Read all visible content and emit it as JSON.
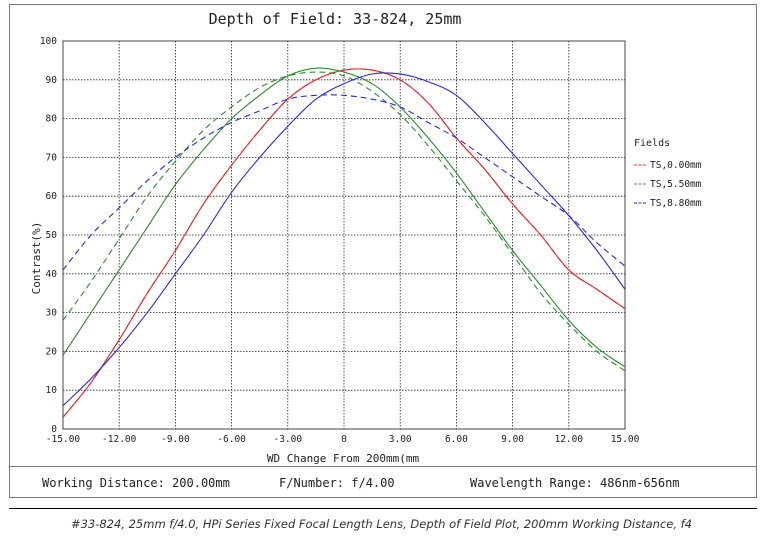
{
  "chart_data": {
    "type": "line",
    "title": "Depth of Field: 33-824, 25mm",
    "xlabel": "WD Change From 200mm(mm",
    "ylabel": "Contrast(%)",
    "xlim": [
      -15,
      15
    ],
    "ylim": [
      0,
      100
    ],
    "x_ticks": [
      "-15.00",
      "-12.00",
      "-9.00",
      "-6.00",
      "-3.00",
      "0",
      "3.00",
      "6.00",
      "9.00",
      "12.00",
      "15.00"
    ],
    "y_ticks": [
      "0",
      "10",
      "20",
      "30",
      "40",
      "50",
      "60",
      "70",
      "80",
      "90",
      "100"
    ],
    "grid": true,
    "legend_title": "Fields",
    "legend_position": "right",
    "series": [
      {
        "name": "TS,0.00mm",
        "color": "#e8282a",
        "dashed": false,
        "x": [
          -15,
          -13.5,
          -12,
          -10.5,
          -9,
          -7.5,
          -6,
          -4.5,
          -3,
          -1.5,
          0,
          1.5,
          3,
          4.5,
          6,
          7.5,
          9,
          10.5,
          12,
          13.5,
          15
        ],
        "y": [
          3,
          12,
          23,
          35,
          46,
          58,
          68,
          77,
          85,
          90,
          92.5,
          92.5,
          90,
          84,
          75,
          67,
          58,
          50,
          41,
          36,
          31
        ]
      },
      {
        "name": "TS,0.00mm",
        "color": "#e8282a",
        "dashed": true,
        "x": [
          -15,
          -13.5,
          -12,
          -10.5,
          -9,
          -7.5,
          -6,
          -4.5,
          -3,
          -1.5,
          0,
          1.5,
          3,
          4.5,
          6,
          7.5,
          9,
          10.5,
          12,
          13.5,
          15
        ],
        "y": [
          3,
          12,
          23,
          35,
          46,
          58,
          68,
          77,
          85,
          90,
          92.5,
          92.5,
          90,
          84,
          75,
          67,
          58,
          50,
          41,
          36,
          31
        ]
      },
      {
        "name": "TS,5.50mm",
        "color": "#2e8b2e",
        "dashed": false,
        "x": [
          -15,
          -13.5,
          -12,
          -10.5,
          -9,
          -7.5,
          -6,
          -4.5,
          -3,
          -1.5,
          0,
          1.5,
          3,
          4.5,
          6,
          7.5,
          9,
          10.5,
          12,
          13.5,
          15
        ],
        "y": [
          19,
          30,
          41,
          52,
          63,
          72,
          80,
          86,
          91,
          93,
          92,
          89,
          83,
          75,
          66,
          56,
          46,
          37,
          28,
          21,
          16
        ]
      },
      {
        "name": "TS,5.50mm",
        "color": "#2e8b2e",
        "dashed": true,
        "x": [
          -15,
          -13.5,
          -12,
          -10.5,
          -9,
          -7.5,
          -6,
          -4.5,
          -3,
          -1.5,
          0,
          1.5,
          3,
          4.5,
          6,
          7.5,
          9,
          10.5,
          12,
          13.5,
          15
        ],
        "y": [
          28,
          38,
          49,
          60,
          69,
          77,
          83,
          88,
          91,
          92,
          91,
          87,
          81,
          73,
          64,
          55,
          45,
          35,
          27,
          20,
          15
        ]
      },
      {
        "name": "TS,8.80mm",
        "color": "#2b2bd6",
        "dashed": false,
        "x": [
          -15,
          -13.5,
          -12,
          -10.5,
          -9,
          -7.5,
          -6,
          -4.5,
          -3,
          -1.5,
          0,
          1.5,
          3,
          4.5,
          6,
          7.5,
          9,
          10.5,
          12,
          13.5,
          15
        ],
        "y": [
          6,
          13,
          21,
          30,
          40,
          50,
          61,
          70,
          78,
          85,
          89,
          91.5,
          91.5,
          89.5,
          86,
          79,
          71,
          63,
          55,
          46,
          36
        ]
      },
      {
        "name": "TS,8.80mm",
        "color": "#2b2bd6",
        "dashed": true,
        "x": [
          -15,
          -13.5,
          -12,
          -10.5,
          -9,
          -7.5,
          -6,
          -4.5,
          -3,
          -1.5,
          0,
          1.5,
          3,
          4.5,
          6,
          7.5,
          9,
          10.5,
          12,
          13.5,
          15
        ],
        "y": [
          41,
          50,
          57,
          64,
          70,
          75,
          79,
          82,
          85,
          86,
          86,
          85,
          83,
          79,
          75,
          70,
          65,
          60,
          55,
          48,
          42
        ]
      }
    ],
    "legend": [
      {
        "label": "TS,0.00mm",
        "color": "#e8282a"
      },
      {
        "label": "TS,5.50mm",
        "color": "#2e8b2e"
      },
      {
        "label": "TS,8.80mm",
        "color": "#2b2bd6"
      }
    ]
  },
  "info": {
    "working_distance": "Working Distance: 200.00mm",
    "f_number": "F/Number: f/4.00",
    "wavelength": "Wavelength Range: 486nm-656nm"
  },
  "caption": "#33-824, 25mm f/4.0, HPi Series Fixed Focal Length Lens, Depth of Field Plot, 200mm Working Distance, f4"
}
